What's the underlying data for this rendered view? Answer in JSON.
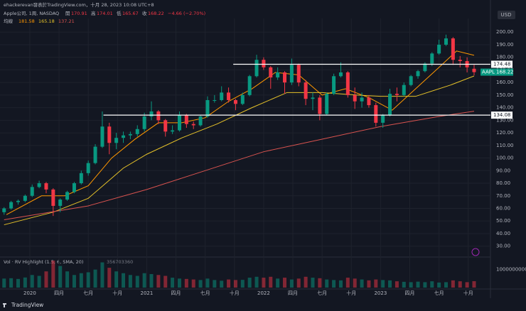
{
  "header": {
    "author_line": "ehackerevan發表於TradingView.com，十月 28, 2023 10:08 UTC+8",
    "symbol_line": "Apple公司, 1周, NASDAQ",
    "ohlc_labels": [
      "開",
      "高",
      "低",
      "收"
    ],
    "change": "−4.66 (−2.70%)",
    "ma_label": "均線",
    "volume_label": "Vol · RV Highlight (1.5, 6, SMA, 20)",
    "brand": "TradingView"
  },
  "chart_data": {
    "type": "candlestick",
    "currency": "USD",
    "symbol": "AAPL",
    "up_color": "#089981",
    "down_color": "#f23645",
    "xlim": [
      2019.745,
      2023.94
    ],
    "xticks": [
      {
        "value": 2020,
        "label": "2020"
      },
      {
        "value": 2020.25,
        "label": "四月"
      },
      {
        "value": 2020.5,
        "label": "七月"
      },
      {
        "value": 2020.75,
        "label": "十月"
      },
      {
        "value": 2021,
        "label": "2021"
      },
      {
        "value": 2021.25,
        "label": "四月"
      },
      {
        "value": 2021.5,
        "label": "七月"
      },
      {
        "value": 2021.75,
        "label": "十月"
      },
      {
        "value": 2022,
        "label": "2022"
      },
      {
        "value": 2022.25,
        "label": "四月"
      },
      {
        "value": 2022.5,
        "label": "七月"
      },
      {
        "value": 2022.75,
        "label": "十月"
      },
      {
        "value": 2023,
        "label": "2023"
      },
      {
        "value": 2023.25,
        "label": "四月"
      },
      {
        "value": 2023.5,
        "label": "七月"
      },
      {
        "value": 2023.75,
        "label": "十月"
      }
    ],
    "ylim": [
      22.5,
      205.2
    ],
    "yticks": [
      {
        "value": 200,
        "label": "200.00"
      },
      {
        "value": 190,
        "label": "190.00"
      },
      {
        "value": 180,
        "label": "180.00"
      },
      {
        "value": 170,
        "label": "170.00"
      },
      {
        "value": 160,
        "label": "160.00"
      },
      {
        "value": 150,
        "label": "150.00"
      },
      {
        "value": 140,
        "label": "140.00"
      },
      {
        "value": 130,
        "label": "130.00"
      },
      {
        "value": 120,
        "label": "120.00"
      },
      {
        "value": 110,
        "label": "110.00"
      },
      {
        "value": 100,
        "label": "100.00"
      },
      {
        "value": 90,
        "label": "90.00"
      },
      {
        "value": 80,
        "label": "80.00"
      },
      {
        "value": 70,
        "label": "70.00"
      },
      {
        "value": 60,
        "label": "60.00"
      },
      {
        "value": 50,
        "label": "50.00"
      },
      {
        "value": 40,
        "label": "40.00"
      },
      {
        "value": 30,
        "label": "30.00"
      }
    ],
    "grid": true,
    "x": [
      2019.78,
      2019.84,
      2019.9,
      2019.96,
      2020.02,
      2020.08,
      2020.14,
      2020.2,
      2020.26,
      2020.32,
      2020.38,
      2020.44,
      2020.5,
      2020.56,
      2020.62,
      2020.68,
      2020.74,
      2020.8,
      2020.86,
      2020.92,
      2020.98,
      2021.04,
      2021.1,
      2021.16,
      2021.22,
      2021.28,
      2021.34,
      2021.4,
      2021.46,
      2021.52,
      2021.58,
      2021.64,
      2021.7,
      2021.76,
      2021.82,
      2021.88,
      2021.94,
      2022.0,
      2022.06,
      2022.12,
      2022.18,
      2022.24,
      2022.3,
      2022.36,
      2022.42,
      2022.48,
      2022.54,
      2022.6,
      2022.66,
      2022.72,
      2022.78,
      2022.84,
      2022.9,
      2022.96,
      2023.02,
      2023.08,
      2023.14,
      2023.2,
      2023.26,
      2023.32,
      2023.38,
      2023.44,
      2023.5,
      2023.56,
      2023.62,
      2023.68,
      2023.74,
      2023.8
    ],
    "open": [
      57,
      60,
      65,
      66,
      70,
      77,
      80,
      75,
      62,
      67,
      73,
      80,
      88,
      96,
      109,
      125,
      112,
      116,
      118,
      119,
      123,
      133,
      137,
      130,
      121,
      122,
      134,
      127,
      126,
      133,
      146,
      146,
      152,
      146,
      143,
      150,
      165,
      178,
      172,
      164,
      168,
      160,
      174,
      160,
      147,
      148,
      135,
      151,
      165,
      168,
      150,
      145,
      148,
      142,
      128,
      134,
      151,
      150,
      158,
      165,
      169,
      175,
      183,
      190,
      195,
      178,
      177,
      170.91
    ],
    "high": [
      61,
      66,
      67,
      71,
      79,
      82,
      81,
      76,
      68,
      74,
      81,
      90,
      98,
      111,
      137,
      128,
      120,
      121,
      121,
      126,
      136,
      145,
      138,
      131,
      126,
      137,
      135,
      129,
      134,
      149,
      150,
      157,
      156,
      147,
      152,
      166,
      182,
      180,
      173,
      172,
      169,
      179,
      175,
      162,
      152,
      150,
      152,
      167,
      176,
      169,
      156,
      152,
      150,
      144,
      135,
      155,
      156,
      160,
      166,
      170,
      176,
      184,
      194,
      198,
      196,
      181,
      180,
      174.01
    ],
    "low": [
      55,
      59,
      63,
      65,
      69,
      76,
      72,
      54,
      57,
      66,
      72,
      79,
      86,
      95,
      108,
      103,
      107,
      112,
      115,
      117,
      121,
      130,
      127,
      117,
      119,
      121,
      124,
      123,
      125,
      132,
      144,
      145,
      144,
      138,
      142,
      149,
      164,
      170,
      155,
      162,
      151,
      158,
      157,
      142,
      138,
      130,
      134,
      150,
      164,
      148,
      139,
      140,
      140,
      125,
      124,
      133,
      145,
      149,
      157,
      163,
      168,
      173,
      182,
      189,
      174,
      172,
      168,
      165.67
    ],
    "close": [
      60,
      65,
      66,
      70,
      77,
      80,
      75,
      62,
      67,
      73,
      80,
      88,
      96,
      109,
      125,
      112,
      116,
      118,
      119,
      123,
      133,
      137,
      130,
      121,
      122,
      134,
      127,
      126,
      133,
      146,
      146,
      152,
      146,
      143,
      150,
      165,
      178,
      172,
      164,
      168,
      160,
      174,
      160,
      147,
      148,
      135,
      151,
      165,
      168,
      150,
      145,
      148,
      142,
      128,
      134,
      151,
      150,
      158,
      165,
      169,
      175,
      183,
      190,
      195,
      178,
      177,
      172,
      168.22
    ],
    "volume": [
      500000000,
      520000000,
      480000000,
      560000000,
      700000000,
      650000000,
      900000000,
      1500000000,
      1200000000,
      900000000,
      700000000,
      800000000,
      850000000,
      1000000000,
      1400000000,
      1100000000,
      900000000,
      800000000,
      700000000,
      650000000,
      800000000,
      750000000,
      700000000,
      650000000,
      550000000,
      500000000,
      480000000,
      450000000,
      420000000,
      500000000,
      420000000,
      380000000,
      450000000,
      420000000,
      430000000,
      550000000,
      600000000,
      550000000,
      600000000,
      500000000,
      550000000,
      450000000,
      500000000,
      600000000,
      550000000,
      520000000,
      450000000,
      420000000,
      400000000,
      550000000,
      500000000,
      450000000,
      400000000,
      450000000,
      420000000,
      400000000,
      350000000,
      320000000,
      300000000,
      330000000,
      300000000,
      350000000,
      280000000,
      300000000,
      400000000,
      350000000,
      300000000,
      356703360
    ],
    "volume_ylim": [
      0,
      1500000000
    ],
    "volume_yticks": [
      1000000000
    ],
    "moving_averages": [
      {
        "color": "#ff9800",
        "x": [
          2019.8,
          2020.1,
          2020.3,
          2020.5,
          2020.7,
          2020.9,
          2021.1,
          2021.3,
          2021.5,
          2021.7,
          2021.9,
          2022.1,
          2022.3,
          2022.5,
          2022.7,
          2022.9,
          2023.1,
          2023.3,
          2023.5,
          2023.65,
          2023.8
        ],
        "values": [
          55,
          70,
          70,
          78,
          100,
          115,
          128,
          128,
          132,
          145,
          155,
          168,
          166,
          150,
          155,
          148,
          138,
          155,
          172,
          185,
          181.58
        ]
      },
      {
        "color": "#e6c229",
        "x": [
          2019.78,
          2020.2,
          2020.5,
          2020.8,
          2021.0,
          2021.3,
          2021.6,
          2021.9,
          2022.2,
          2022.5,
          2022.8,
          2023.0,
          2023.3,
          2023.6,
          2023.8
        ],
        "values": [
          47,
          57,
          68,
          92,
          103,
          116,
          127,
          140,
          152,
          152,
          150,
          149,
          149,
          158,
          165.18
        ]
      },
      {
        "color": "#d9534f",
        "x": [
          2019.78,
          2020.5,
          2021.0,
          2021.5,
          2022.0,
          2022.5,
          2023.0,
          2023.5,
          2023.8
        ],
        "values": [
          51,
          62,
          75,
          90,
          105,
          115,
          125,
          133,
          137.21
        ]
      }
    ],
    "levels": [
      {
        "value": 174.48,
        "from": 2021.74
      },
      {
        "value": 134.08,
        "from": 2020.63
      }
    ]
  }
}
